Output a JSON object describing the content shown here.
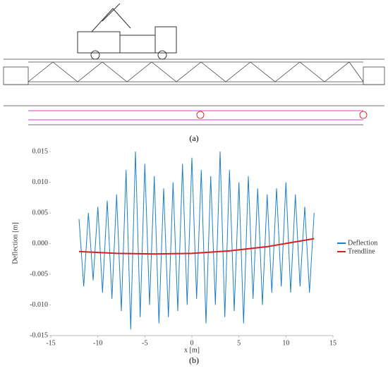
{
  "captions": {
    "a": "(a)",
    "b": "(b)"
  },
  "chart_data": {
    "type": "line",
    "y_label": "Deflection [m]",
    "x_label": "x [m]",
    "xlim": [
      -15,
      15
    ],
    "xticks": [
      -15,
      -10,
      -5,
      0,
      5,
      10,
      15
    ],
    "ylim": [
      -0.015,
      0.015
    ],
    "yticks": [
      -0.015,
      {
        "value": -0.01,
        "label": "-0.010"
      },
      {
        "value": -0.005,
        "label": "-0.005"
      },
      {
        "value": 0,
        "label": "0.000"
      },
      {
        "value": 0.005,
        "label": "0.005"
      },
      {
        "value": 0.01,
        "label": "0.010"
      },
      0.015
    ],
    "legend": "right",
    "series": [
      {
        "name": "Deflection",
        "color": "#1f7fc4",
        "x": [
          -12,
          -11.5,
          -11,
          -10.5,
          -10,
          -9.5,
          -9,
          -8.5,
          -8,
          -7.5,
          -7,
          -6.5,
          -6,
          -5.5,
          -5,
          -4.5,
          -4,
          -3.5,
          -3,
          -2.5,
          -2,
          -1.5,
          -1,
          -0.5,
          0,
          0.5,
          1,
          1.5,
          2,
          2.5,
          3,
          3.5,
          4,
          4.5,
          5,
          5.5,
          6,
          6.5,
          7,
          7.5,
          8,
          8.5,
          9,
          9.5,
          10,
          10.5,
          11,
          11.5,
          12,
          12.5,
          13
        ],
        "values": [
          0.004,
          -0.007,
          0.005,
          -0.006,
          0.006,
          -0.008,
          0.007,
          -0.009,
          0.008,
          -0.011,
          0.012,
          -0.014,
          0.015,
          -0.012,
          0.013,
          -0.01,
          0.011,
          -0.013,
          0.009,
          -0.012,
          0.01,
          -0.011,
          0.013,
          -0.01,
          0.014,
          -0.009,
          0.012,
          -0.013,
          0.011,
          -0.01,
          0.015,
          -0.012,
          0.012,
          -0.011,
          0.01,
          -0.013,
          0.011,
          -0.009,
          0.009,
          -0.01,
          0.008,
          -0.008,
          0.009,
          -0.007,
          0.01,
          -0.008,
          0.008,
          -0.007,
          0.006,
          -0.008,
          0.005
        ]
      },
      {
        "name": "Trendline",
        "color": "#d62020",
        "x": [
          -12,
          -8,
          -4,
          0,
          4,
          8,
          13
        ],
        "values": [
          -0.0013,
          -0.0016,
          -0.0017,
          -0.0016,
          -0.0012,
          -0.0005,
          0.0008
        ]
      }
    ]
  }
}
